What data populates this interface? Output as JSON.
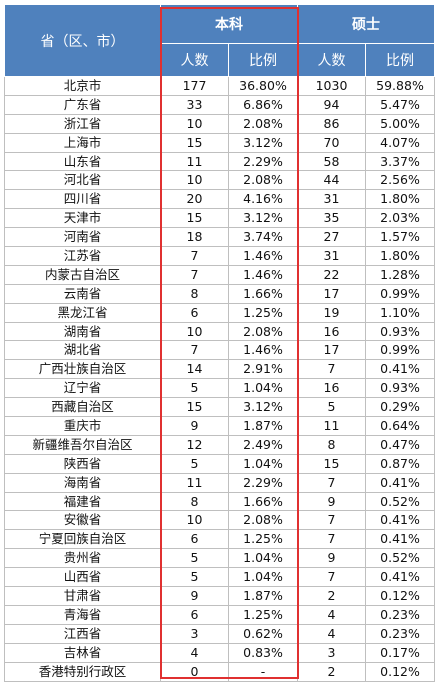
{
  "header": {
    "region_label": "省（区、市）",
    "undergrad_label": "本科",
    "master_label": "硕士",
    "count_label": "人数",
    "ratio_label": "比例"
  },
  "rows": [
    {
      "region": "北京市",
      "ug_count": "177",
      "ug_ratio": "36.80%",
      "ms_count": "1030",
      "ms_ratio": "59.88%"
    },
    {
      "region": "广东省",
      "ug_count": "33",
      "ug_ratio": "6.86%",
      "ms_count": "94",
      "ms_ratio": "5.47%"
    },
    {
      "region": "浙江省",
      "ug_count": "10",
      "ug_ratio": "2.08%",
      "ms_count": "86",
      "ms_ratio": "5.00%"
    },
    {
      "region": "上海市",
      "ug_count": "15",
      "ug_ratio": "3.12%",
      "ms_count": "70",
      "ms_ratio": "4.07%"
    },
    {
      "region": "山东省",
      "ug_count": "11",
      "ug_ratio": "2.29%",
      "ms_count": "58",
      "ms_ratio": "3.37%"
    },
    {
      "region": "河北省",
      "ug_count": "10",
      "ug_ratio": "2.08%",
      "ms_count": "44",
      "ms_ratio": "2.56%"
    },
    {
      "region": "四川省",
      "ug_count": "20",
      "ug_ratio": "4.16%",
      "ms_count": "31",
      "ms_ratio": "1.80%"
    },
    {
      "region": "天津市",
      "ug_count": "15",
      "ug_ratio": "3.12%",
      "ms_count": "35",
      "ms_ratio": "2.03%"
    },
    {
      "region": "河南省",
      "ug_count": "18",
      "ug_ratio": "3.74%",
      "ms_count": "27",
      "ms_ratio": "1.57%"
    },
    {
      "region": "江苏省",
      "ug_count": "7",
      "ug_ratio": "1.46%",
      "ms_count": "31",
      "ms_ratio": "1.80%"
    },
    {
      "region": "内蒙古自治区",
      "ug_count": "7",
      "ug_ratio": "1.46%",
      "ms_count": "22",
      "ms_ratio": "1.28%"
    },
    {
      "region": "云南省",
      "ug_count": "8",
      "ug_ratio": "1.66%",
      "ms_count": "17",
      "ms_ratio": "0.99%"
    },
    {
      "region": "黑龙江省",
      "ug_count": "6",
      "ug_ratio": "1.25%",
      "ms_count": "19",
      "ms_ratio": "1.10%"
    },
    {
      "region": "湖南省",
      "ug_count": "10",
      "ug_ratio": "2.08%",
      "ms_count": "16",
      "ms_ratio": "0.93%"
    },
    {
      "region": "湖北省",
      "ug_count": "7",
      "ug_ratio": "1.46%",
      "ms_count": "17",
      "ms_ratio": "0.99%"
    },
    {
      "region": "广西壮族自治区",
      "ug_count": "14",
      "ug_ratio": "2.91%",
      "ms_count": "7",
      "ms_ratio": "0.41%"
    },
    {
      "region": "辽宁省",
      "ug_count": "5",
      "ug_ratio": "1.04%",
      "ms_count": "16",
      "ms_ratio": "0.93%"
    },
    {
      "region": "西藏自治区",
      "ug_count": "15",
      "ug_ratio": "3.12%",
      "ms_count": "5",
      "ms_ratio": "0.29%"
    },
    {
      "region": "重庆市",
      "ug_count": "9",
      "ug_ratio": "1.87%",
      "ms_count": "11",
      "ms_ratio": "0.64%"
    },
    {
      "region": "新疆维吾尔自治区",
      "ug_count": "12",
      "ug_ratio": "2.49%",
      "ms_count": "8",
      "ms_ratio": "0.47%"
    },
    {
      "region": "陕西省",
      "ug_count": "5",
      "ug_ratio": "1.04%",
      "ms_count": "15",
      "ms_ratio": "0.87%"
    },
    {
      "region": "海南省",
      "ug_count": "11",
      "ug_ratio": "2.29%",
      "ms_count": "7",
      "ms_ratio": "0.41%"
    },
    {
      "region": "福建省",
      "ug_count": "8",
      "ug_ratio": "1.66%",
      "ms_count": "9",
      "ms_ratio": "0.52%"
    },
    {
      "region": "安徽省",
      "ug_count": "10",
      "ug_ratio": "2.08%",
      "ms_count": "7",
      "ms_ratio": "0.41%"
    },
    {
      "region": "宁夏回族自治区",
      "ug_count": "6",
      "ug_ratio": "1.25%",
      "ms_count": "7",
      "ms_ratio": "0.41%"
    },
    {
      "region": "贵州省",
      "ug_count": "5",
      "ug_ratio": "1.04%",
      "ms_count": "9",
      "ms_ratio": "0.52%"
    },
    {
      "region": "山西省",
      "ug_count": "5",
      "ug_ratio": "1.04%",
      "ms_count": "7",
      "ms_ratio": "0.41%"
    },
    {
      "region": "甘肃省",
      "ug_count": "9",
      "ug_ratio": "1.87%",
      "ms_count": "2",
      "ms_ratio": "0.12%"
    },
    {
      "region": "青海省",
      "ug_count": "6",
      "ug_ratio": "1.25%",
      "ms_count": "4",
      "ms_ratio": "0.23%"
    },
    {
      "region": "江西省",
      "ug_count": "3",
      "ug_ratio": "0.62%",
      "ms_count": "4",
      "ms_ratio": "0.23%"
    },
    {
      "region": "吉林省",
      "ug_count": "4",
      "ug_ratio": "0.83%",
      "ms_count": "3",
      "ms_ratio": "0.17%"
    },
    {
      "region": "香港特别行政区",
      "ug_count": "0",
      "ug_ratio": "-",
      "ms_count": "2",
      "ms_ratio": "0.12%"
    }
  ],
  "highlight_color": "#e03030",
  "header_color": "#4f81bd"
}
